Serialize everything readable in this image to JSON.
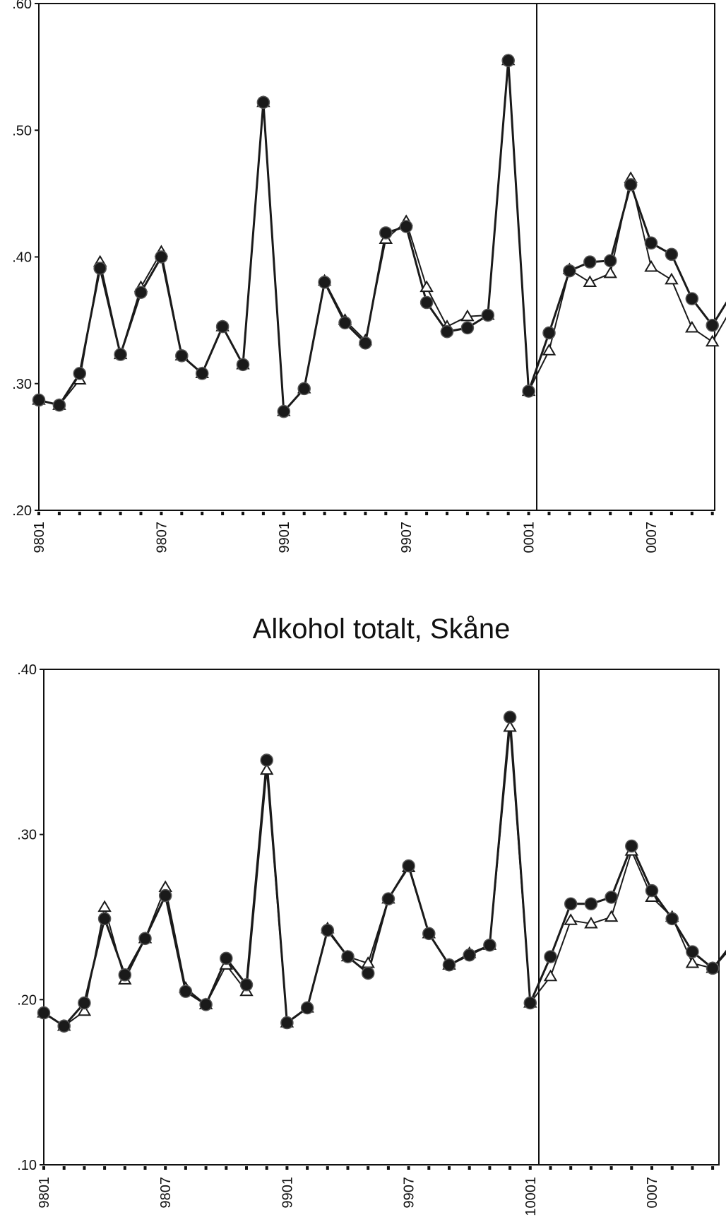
{
  "chart_data": [
    {
      "type": "line",
      "title": "",
      "xlabel": "",
      "ylabel": "",
      "ylim": [
        0.2,
        0.6
      ],
      "ytick_labels": [
        ".20",
        ".30",
        ".40",
        ".50",
        ".60"
      ],
      "xtick_labels": [
        "9801",
        "9807",
        "9901",
        "9907",
        "0001",
        "0007"
      ],
      "x_months": 36,
      "vline_after_month": 25.5,
      "series": [
        {
          "marker": "filled-circle",
          "values": [
            0.287,
            0.283,
            0.308,
            0.391,
            0.323,
            0.372,
            0.4,
            0.322,
            0.308,
            0.345,
            0.315,
            0.522,
            0.278,
            0.296,
            0.38,
            0.348,
            0.332,
            0.419,
            0.424,
            0.364,
            0.341,
            0.344,
            0.354,
            0.555,
            0.294,
            0.34,
            0.389,
            0.396,
            0.397,
            0.457,
            0.411,
            0.402,
            0.367,
            0.346,
            0.372
          ]
        },
        {
          "marker": "open-triangle",
          "values": [
            0.287,
            0.283,
            0.303,
            0.396,
            0.323,
            0.376,
            0.404,
            0.322,
            0.308,
            0.345,
            0.315,
            0.522,
            0.278,
            0.296,
            0.381,
            0.35,
            0.334,
            0.414,
            0.428,
            0.376,
            0.345,
            0.353,
            0.354,
            0.555,
            0.294,
            0.326,
            0.39,
            0.38,
            0.387,
            0.462,
            0.392,
            0.382,
            0.344,
            0.333,
            0.361
          ]
        }
      ]
    },
    {
      "type": "line",
      "title": "Alkohol totalt, Skåne",
      "xlabel": "",
      "ylabel": "",
      "ylim": [
        0.1,
        0.4
      ],
      "ytick_labels": [
        ".10",
        ".20",
        ".30",
        ".40"
      ],
      "xtick_labels": [
        "9801",
        "9807",
        "9901",
        "9907",
        "10001",
        "0007"
      ],
      "x_months": 36,
      "vline_after_month": 25.5,
      "series": [
        {
          "marker": "filled-circle",
          "values": [
            0.192,
            0.184,
            0.198,
            0.249,
            0.215,
            0.237,
            0.263,
            0.205,
            0.197,
            0.225,
            0.209,
            0.345,
            0.186,
            0.195,
            0.242,
            0.226,
            0.216,
            0.261,
            0.281,
            0.24,
            0.221,
            0.227,
            0.233,
            0.371,
            0.198,
            0.226,
            0.258,
            0.258,
            0.262,
            0.293,
            0.266,
            0.249,
            0.229,
            0.219,
            0.233
          ]
        },
        {
          "marker": "open-triangle",
          "values": [
            0.192,
            0.184,
            0.193,
            0.256,
            0.212,
            0.237,
            0.268,
            0.207,
            0.197,
            0.221,
            0.205,
            0.339,
            0.186,
            0.195,
            0.243,
            0.226,
            0.222,
            0.261,
            0.28,
            0.24,
            0.221,
            0.228,
            0.233,
            0.365,
            0.198,
            0.214,
            0.248,
            0.246,
            0.25,
            0.29,
            0.262,
            0.25,
            0.222,
            0.219,
            0.235
          ]
        }
      ]
    }
  ]
}
